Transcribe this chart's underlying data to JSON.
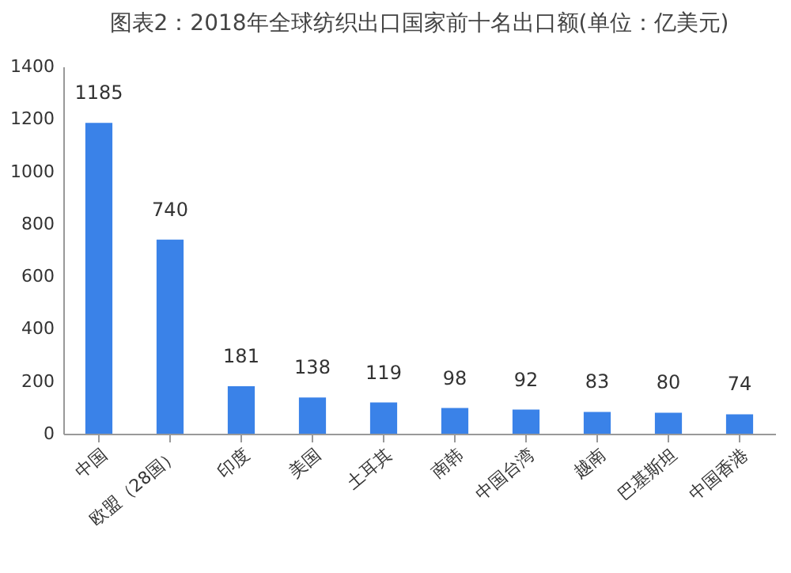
{
  "chart_data": {
    "type": "bar",
    "title": "图表2：2018年全球纺织出口国家前十名出口额(单位：亿美元)",
    "categories": [
      "中国",
      "欧盟（28国）",
      "印度",
      "美国",
      "土耳其",
      "南韩",
      "中国台湾",
      "越南",
      "巴基斯坦",
      "中国香港"
    ],
    "values": [
      1185,
      740,
      181,
      138,
      119,
      98,
      92,
      83,
      80,
      74
    ],
    "color": "#3a82e8",
    "ylim": [
      0,
      1400
    ],
    "yticks": [
      0,
      200,
      400,
      600,
      800,
      1000,
      1200,
      1400
    ],
    "data_labels": true
  }
}
